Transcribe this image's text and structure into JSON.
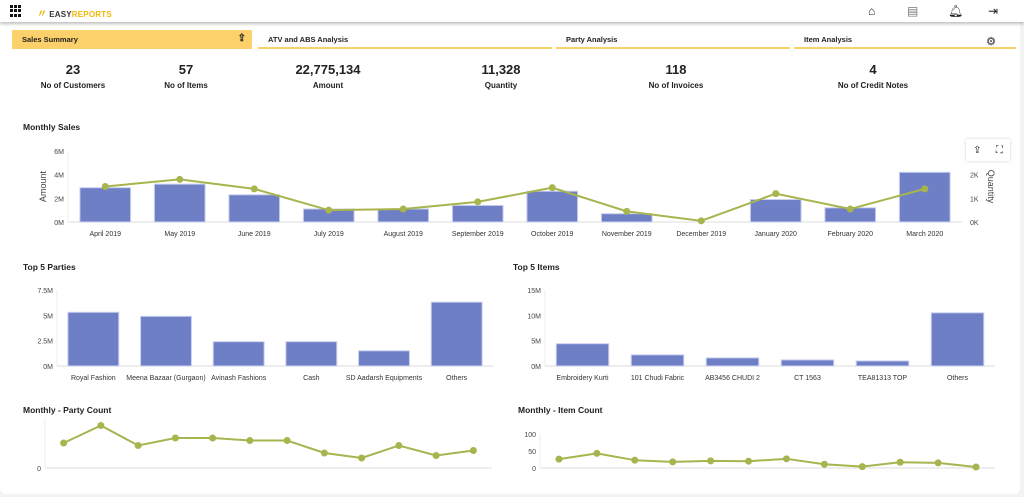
{
  "header": {
    "logo_text_1": "EASY",
    "logo_text_2": "REPORTS",
    "icons": [
      "apps-grid-icon",
      "home-icon",
      "database-icon",
      "bell-icon",
      "logout-icon"
    ]
  },
  "tabs": [
    {
      "label": "Sales Summary",
      "active": true
    },
    {
      "label": "ATV and ABS Analysis"
    },
    {
      "label": "Party Analysis"
    },
    {
      "label": "Item Analysis"
    }
  ],
  "kpis": [
    {
      "value": "23",
      "label": "No of Customers"
    },
    {
      "value": "57",
      "label": "No of Items"
    },
    {
      "value": "22,775,134",
      "label": "Amount"
    },
    {
      "value": "11,328",
      "label": "Quantity"
    },
    {
      "value": "118",
      "label": "No of Invoices"
    },
    {
      "value": "4",
      "label": "No of Credit Notes"
    }
  ],
  "sections": {
    "monthly_sales": "Monthly Sales",
    "top_parties": "Top 5 Parties",
    "top_items": "Top 5 Items",
    "party_count": "Monthly - Party Count",
    "item_count": "Monthly - Item Count"
  },
  "colors": {
    "bar": "#6f7fc6",
    "line": "#a8b44e",
    "accent": "#fcd06a"
  },
  "chart_data": [
    {
      "type": "bar+line",
      "title": "Monthly Sales",
      "ylabel": "Amount",
      "y2label": "Quantity",
      "ylim": [
        0,
        6000000
      ],
      "y2lim": [
        0,
        3000
      ],
      "yticks": [
        "0M",
        "2M",
        "4M",
        "6M"
      ],
      "y2ticks": [
        "0K",
        "1K",
        "2K"
      ],
      "categories": [
        "April 2019",
        "May 2019",
        "June 2019",
        "July 2019",
        "August 2019",
        "September 2019",
        "October 2019",
        "November 2019",
        "December 2019",
        "January 2020",
        "February 2020",
        "March 2020"
      ],
      "series": [
        {
          "name": "Amount",
          "type": "bar",
          "values": [
            2900000,
            3200000,
            2300000,
            1100000,
            1100000,
            1400000,
            2600000,
            700000,
            0,
            1900000,
            1200000,
            4200000
          ]
        },
        {
          "name": "Quantity",
          "type": "line",
          "values": [
            1500,
            1800,
            1400,
            500,
            550,
            850,
            1450,
            450,
            50,
            1200,
            550,
            1400
          ]
        }
      ]
    },
    {
      "type": "bar",
      "title": "Top 5 Parties",
      "ylim": [
        0,
        7500000
      ],
      "yticks": [
        "0M",
        "2.5M",
        "5M",
        "7.5M"
      ],
      "categories": [
        "Royal Fashion",
        "Meena Bazaar (Gurgaon)",
        "Avinash Fashions",
        "Cash",
        "SD Aadarsh Equipments",
        "Others"
      ],
      "values": [
        5300000,
        4900000,
        2400000,
        2400000,
        1500000,
        6300000
      ]
    },
    {
      "type": "bar",
      "title": "Top 5 Items",
      "ylim": [
        0,
        15000000
      ],
      "yticks": [
        "0M",
        "5M",
        "10M",
        "15M"
      ],
      "categories": [
        "Embroidery Kurti",
        "101 Chudi Fabric",
        "AB3456 CHUDI 2",
        "CT 1563",
        "TEA81313 TOP",
        "Others"
      ],
      "values": [
        4400000,
        2200000,
        1600000,
        1200000,
        1000000,
        10500000
      ]
    },
    {
      "type": "line",
      "title": "Monthly - Party Count",
      "ylim": [
        0,
        20
      ],
      "yticks": [
        "0"
      ],
      "values": [
        10,
        17,
        9,
        12,
        12,
        11,
        11,
        6,
        4,
        9,
        5,
        7
      ]
    },
    {
      "type": "line",
      "title": "Monthly - Item Count",
      "ylim": [
        0,
        100
      ],
      "yticks": [
        "0",
        "50",
        "100"
      ],
      "values": [
        26,
        43,
        23,
        18,
        21,
        20,
        27,
        11,
        4,
        17,
        15,
        3
      ]
    }
  ]
}
